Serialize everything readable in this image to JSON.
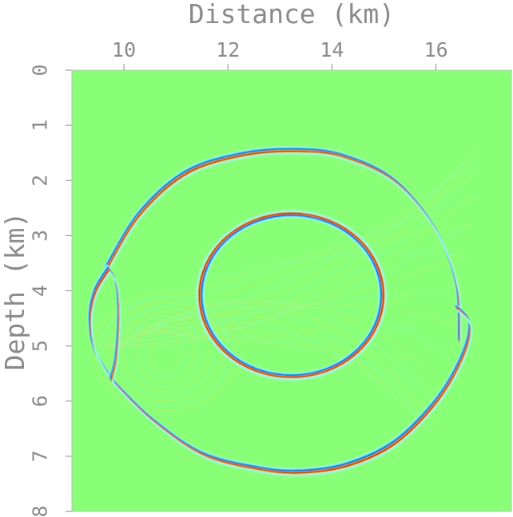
{
  "chart_data": {
    "type": "heatmap",
    "title": "",
    "xlabel": "Distance (km)",
    "ylabel": "Depth (km)",
    "xlim": [
      9.0,
      17.45
    ],
    "ylim": [
      0,
      8
    ],
    "y_inverted": true,
    "x_axis_position": "top",
    "xticks": [
      "10",
      "12",
      "14",
      "16"
    ],
    "yticks": [
      "0",
      "1",
      "2",
      "3",
      "4",
      "5",
      "6",
      "7",
      "8"
    ],
    "grid": false,
    "legend": "none",
    "colormap": {
      "background": "#88ff77",
      "positive": "#7a0000",
      "positive_mid": "#ff2a00",
      "positive_low": "#ffd84a",
      "negative": "#0030c8",
      "negative_mid": "#00c8ff",
      "negative_low": "#9ff5e6"
    },
    "wavefronts": [
      {
        "name": "outer-upper",
        "points": [
          [
            9.65,
            3.6
          ],
          [
            10.3,
            2.6
          ],
          [
            11.2,
            1.85
          ],
          [
            12.3,
            1.52
          ],
          [
            13.3,
            1.45
          ],
          [
            14.2,
            1.55
          ],
          [
            15.2,
            2.0
          ],
          [
            16.0,
            2.9
          ],
          [
            16.4,
            3.9
          ],
          [
            16.45,
            4.9
          ]
        ],
        "amplitude": 0.9
      },
      {
        "name": "outer-lower",
        "points": [
          [
            9.75,
            5.6
          ],
          [
            10.5,
            6.3
          ],
          [
            11.5,
            6.95
          ],
          [
            12.6,
            7.22
          ],
          [
            13.4,
            7.28
          ],
          [
            14.3,
            7.15
          ],
          [
            15.2,
            6.75
          ],
          [
            16.0,
            6.0
          ],
          [
            16.5,
            5.2
          ],
          [
            16.65,
            4.6
          ],
          [
            16.4,
            4.3
          ]
        ],
        "amplitude": 0.95
      },
      {
        "name": "inner-ellipse",
        "center": [
          13.22,
          4.08
        ],
        "radii": [
          1.75,
          1.47
        ],
        "amplitude": 1.0
      },
      {
        "name": "left-crescent",
        "points": [
          [
            9.7,
            3.6
          ],
          [
            9.45,
            4.0
          ],
          [
            9.35,
            4.5
          ],
          [
            9.45,
            5.1
          ],
          [
            9.8,
            5.65
          ]
        ],
        "amplitude": 1.0
      },
      {
        "name": "left-fold",
        "points": [
          [
            9.7,
            3.6
          ],
          [
            9.85,
            3.85
          ],
          [
            9.9,
            4.4
          ],
          [
            9.85,
            5.2
          ],
          [
            9.75,
            5.6
          ]
        ],
        "amplitude": 0.8
      }
    ]
  }
}
